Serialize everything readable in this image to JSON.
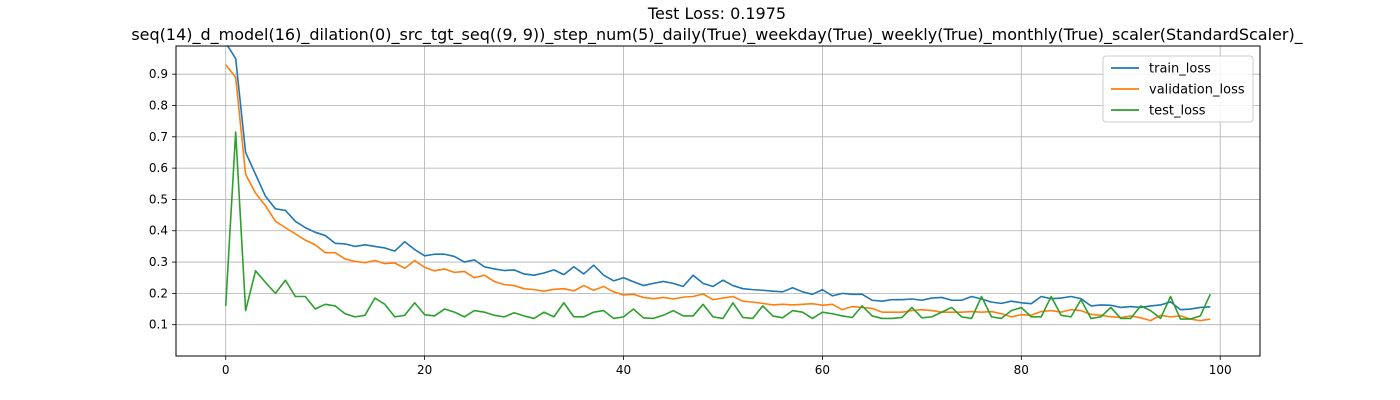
{
  "chart_data": {
    "type": "line",
    "title": "Test Loss: 0.1975",
    "subtitle": "seq(14)_d_model(16)_dilation(0)_src_tgt_seq((9, 9))_step_num(5)_daily(True)_weekday(True)_weekly(True)_monthly(True)_scaler(StandardScaler)_",
    "xlabel": "",
    "ylabel": "",
    "xlim": [
      -5,
      104
    ],
    "ylim": [
      0.0,
      0.99
    ],
    "xticks": [
      0,
      20,
      40,
      60,
      80,
      100
    ],
    "yticks": [
      0.1,
      0.2,
      0.3,
      0.4,
      0.5,
      0.6,
      0.7,
      0.8,
      0.9
    ],
    "grid": true,
    "legend_position": "top-right",
    "series": [
      {
        "name": "train_loss",
        "color": "#1f77b4",
        "values": [
          1.0,
          0.95,
          0.65,
          0.58,
          0.51,
          0.47,
          0.465,
          0.43,
          0.41,
          0.395,
          0.385,
          0.36,
          0.358,
          0.35,
          0.355,
          0.35,
          0.345,
          0.335,
          0.365,
          0.34,
          0.32,
          0.325,
          0.325,
          0.318,
          0.3,
          0.307,
          0.285,
          0.278,
          0.273,
          0.275,
          0.262,
          0.258,
          0.265,
          0.275,
          0.26,
          0.285,
          0.262,
          0.29,
          0.258,
          0.24,
          0.25,
          0.237,
          0.225,
          0.232,
          0.238,
          0.232,
          0.222,
          0.258,
          0.232,
          0.222,
          0.242,
          0.225,
          0.215,
          0.212,
          0.21,
          0.207,
          0.205,
          0.218,
          0.205,
          0.197,
          0.212,
          0.192,
          0.2,
          0.197,
          0.197,
          0.178,
          0.175,
          0.18,
          0.18,
          0.182,
          0.178,
          0.185,
          0.187,
          0.178,
          0.178,
          0.19,
          0.182,
          0.172,
          0.168,
          0.175,
          0.17,
          0.167,
          0.19,
          0.183,
          0.185,
          0.19,
          0.183,
          0.16,
          0.163,
          0.162,
          0.155,
          0.158,
          0.155,
          0.16,
          0.163,
          0.173,
          0.148,
          0.15,
          0.155,
          0.157
        ]
      },
      {
        "name": "validation_loss",
        "color": "#ff7f0e",
        "values": [
          0.93,
          0.89,
          0.58,
          0.52,
          0.48,
          0.43,
          0.41,
          0.39,
          0.37,
          0.355,
          0.33,
          0.33,
          0.31,
          0.302,
          0.298,
          0.305,
          0.295,
          0.297,
          0.28,
          0.305,
          0.283,
          0.272,
          0.278,
          0.267,
          0.27,
          0.25,
          0.258,
          0.238,
          0.228,
          0.225,
          0.215,
          0.212,
          0.207,
          0.213,
          0.215,
          0.208,
          0.225,
          0.21,
          0.222,
          0.205,
          0.195,
          0.197,
          0.187,
          0.183,
          0.187,
          0.182,
          0.188,
          0.19,
          0.198,
          0.18,
          0.185,
          0.19,
          0.175,
          0.172,
          0.168,
          0.163,
          0.165,
          0.163,
          0.165,
          0.167,
          0.162,
          0.165,
          0.148,
          0.158,
          0.155,
          0.152,
          0.14,
          0.14,
          0.14,
          0.145,
          0.148,
          0.145,
          0.14,
          0.14,
          0.14,
          0.142,
          0.14,
          0.142,
          0.135,
          0.125,
          0.132,
          0.13,
          0.142,
          0.145,
          0.14,
          0.148,
          0.145,
          0.133,
          0.13,
          0.125,
          0.123,
          0.128,
          0.122,
          0.113,
          0.13,
          0.125,
          0.128,
          0.118,
          0.113,
          0.118
        ]
      },
      {
        "name": "test_loss",
        "color": "#2ca02c",
        "values": [
          0.16,
          0.715,
          0.145,
          0.272,
          0.235,
          0.2,
          0.242,
          0.19,
          0.19,
          0.15,
          0.165,
          0.16,
          0.135,
          0.125,
          0.13,
          0.185,
          0.165,
          0.125,
          0.13,
          0.17,
          0.132,
          0.128,
          0.15,
          0.14,
          0.125,
          0.145,
          0.14,
          0.13,
          0.125,
          0.138,
          0.128,
          0.12,
          0.14,
          0.125,
          0.17,
          0.125,
          0.125,
          0.14,
          0.145,
          0.12,
          0.125,
          0.15,
          0.122,
          0.12,
          0.13,
          0.145,
          0.128,
          0.128,
          0.165,
          0.125,
          0.12,
          0.17,
          0.123,
          0.12,
          0.16,
          0.128,
          0.122,
          0.145,
          0.14,
          0.12,
          0.14,
          0.135,
          0.128,
          0.123,
          0.16,
          0.128,
          0.12,
          0.12,
          0.123,
          0.155,
          0.122,
          0.125,
          0.14,
          0.155,
          0.125,
          0.12,
          0.19,
          0.125,
          0.12,
          0.145,
          0.155,
          0.125,
          0.125,
          0.19,
          0.13,
          0.125,
          0.18,
          0.12,
          0.125,
          0.155,
          0.12,
          0.12,
          0.16,
          0.145,
          0.12,
          0.19,
          0.118,
          0.118,
          0.128,
          0.1975
        ]
      }
    ]
  }
}
